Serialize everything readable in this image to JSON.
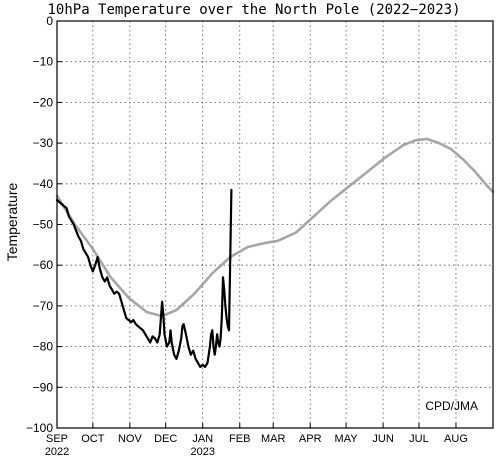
{
  "chart_data": {
    "type": "line",
    "title": "10hPa Temperature over the North Pole (2022−2023)",
    "ylabel": "Temperature",
    "xlabel": "",
    "credit": "CPD/JMA",
    "ylim": [
      -100,
      0
    ],
    "xlim": [
      0,
      365
    ],
    "grid": true,
    "yticks": [
      {
        "value": 0,
        "label": "0"
      },
      {
        "value": -10,
        "label": "−10"
      },
      {
        "value": -20,
        "label": "−20"
      },
      {
        "value": -30,
        "label": "−30"
      },
      {
        "value": -40,
        "label": "−40"
      },
      {
        "value": -50,
        "label": "−50"
      },
      {
        "value": -60,
        "label": "−60"
      },
      {
        "value": -70,
        "label": "−70"
      },
      {
        "value": -80,
        "label": "−80"
      },
      {
        "value": -90,
        "label": "−90"
      },
      {
        "value": -100,
        "label": "−100"
      }
    ],
    "xticks": [
      {
        "day": 0,
        "label": "SEP",
        "sub": "2022"
      },
      {
        "day": 30,
        "label": "OCT",
        "sub": ""
      },
      {
        "day": 61,
        "label": "NOV",
        "sub": ""
      },
      {
        "day": 91,
        "label": "DEC",
        "sub": ""
      },
      {
        "day": 122,
        "label": "JAN",
        "sub": "2023"
      },
      {
        "day": 153,
        "label": "FEB",
        "sub": ""
      },
      {
        "day": 181,
        "label": "MAR",
        "sub": ""
      },
      {
        "day": 212,
        "label": "APR",
        "sub": ""
      },
      {
        "day": 242,
        "label": "MAY",
        "sub": ""
      },
      {
        "day": 273,
        "label": "JUN",
        "sub": ""
      },
      {
        "day": 303,
        "label": "JUL",
        "sub": ""
      },
      {
        "day": 334,
        "label": "AUG",
        "sub": ""
      }
    ],
    "series": [
      {
        "color": "#a6a6a6",
        "points": [
          [
            0,
            -43
          ],
          [
            15,
            -50
          ],
          [
            30,
            -56
          ],
          [
            45,
            -63
          ],
          [
            60,
            -68
          ],
          [
            75,
            -71.5
          ],
          [
            88,
            -72.5
          ],
          [
            100,
            -71
          ],
          [
            115,
            -67
          ],
          [
            130,
            -62
          ],
          [
            145,
            -58
          ],
          [
            160,
            -55.5
          ],
          [
            175,
            -54.5
          ],
          [
            185,
            -54
          ],
          [
            200,
            -52
          ],
          [
            215,
            -48
          ],
          [
            230,
            -44
          ],
          [
            245,
            -40.5
          ],
          [
            260,
            -37
          ],
          [
            275,
            -33.5
          ],
          [
            290,
            -30.5
          ],
          [
            300,
            -29.3
          ],
          [
            310,
            -29
          ],
          [
            320,
            -30
          ],
          [
            330,
            -31.5
          ],
          [
            340,
            -34
          ],
          [
            350,
            -37
          ],
          [
            360,
            -40.5
          ],
          [
            365,
            -42
          ]
        ]
      },
      {
        "color": "#000000",
        "points": [
          [
            0,
            -44
          ],
          [
            4,
            -45
          ],
          [
            8,
            -46
          ],
          [
            10,
            -48
          ],
          [
            14,
            -50
          ],
          [
            16,
            -51.5
          ],
          [
            18,
            -53
          ],
          [
            20,
            -54
          ],
          [
            22,
            -56
          ],
          [
            24,
            -57
          ],
          [
            26,
            -58
          ],
          [
            28,
            -60
          ],
          [
            30,
            -61.5
          ],
          [
            32,
            -60
          ],
          [
            34,
            -58
          ],
          [
            36,
            -61
          ],
          [
            38,
            -63
          ],
          [
            40,
            -64
          ],
          [
            42,
            -63
          ],
          [
            44,
            -65
          ],
          [
            46,
            -66
          ],
          [
            48,
            -67
          ],
          [
            50,
            -66.5
          ],
          [
            52,
            -67
          ],
          [
            54,
            -69
          ],
          [
            56,
            -71
          ],
          [
            58,
            -73
          ],
          [
            60,
            -73.5
          ],
          [
            62,
            -74
          ],
          [
            64,
            -73.5
          ],
          [
            66,
            -74.5
          ],
          [
            68,
            -75
          ],
          [
            70,
            -75.5
          ],
          [
            72,
            -76
          ],
          [
            74,
            -77
          ],
          [
            76,
            -78
          ],
          [
            78,
            -79
          ],
          [
            80,
            -77.5
          ],
          [
            82,
            -78
          ],
          [
            84,
            -79
          ],
          [
            86,
            -77
          ],
          [
            88,
            -69
          ],
          [
            89,
            -72
          ],
          [
            90,
            -77
          ],
          [
            92,
            -80
          ],
          [
            94,
            -79
          ],
          [
            95,
            -76
          ],
          [
            96,
            -79
          ],
          [
            98,
            -82
          ],
          [
            100,
            -83
          ],
          [
            102,
            -81
          ],
          [
            104,
            -78
          ],
          [
            105,
            -75
          ],
          [
            106,
            -74.5
          ],
          [
            108,
            -77
          ],
          [
            110,
            -80
          ],
          [
            112,
            -82
          ],
          [
            114,
            -81
          ],
          [
            116,
            -83
          ],
          [
            118,
            -84
          ],
          [
            120,
            -85
          ],
          [
            122,
            -84.5
          ],
          [
            124,
            -85
          ],
          [
            126,
            -84
          ],
          [
            128,
            -80
          ],
          [
            129,
            -77
          ],
          [
            130,
            -76
          ],
          [
            131,
            -80
          ],
          [
            132,
            -82
          ],
          [
            133,
            -80
          ],
          [
            134,
            -77
          ],
          [
            135,
            -79
          ],
          [
            136,
            -80
          ],
          [
            137,
            -78
          ],
          [
            138,
            -73
          ],
          [
            139,
            -63
          ],
          [
            140,
            -66
          ],
          [
            141,
            -70
          ],
          [
            142,
            -73
          ],
          [
            143,
            -75
          ],
          [
            144,
            -76
          ],
          [
            145,
            -59
          ],
          [
            146,
            -41.5
          ]
        ]
      }
    ]
  }
}
